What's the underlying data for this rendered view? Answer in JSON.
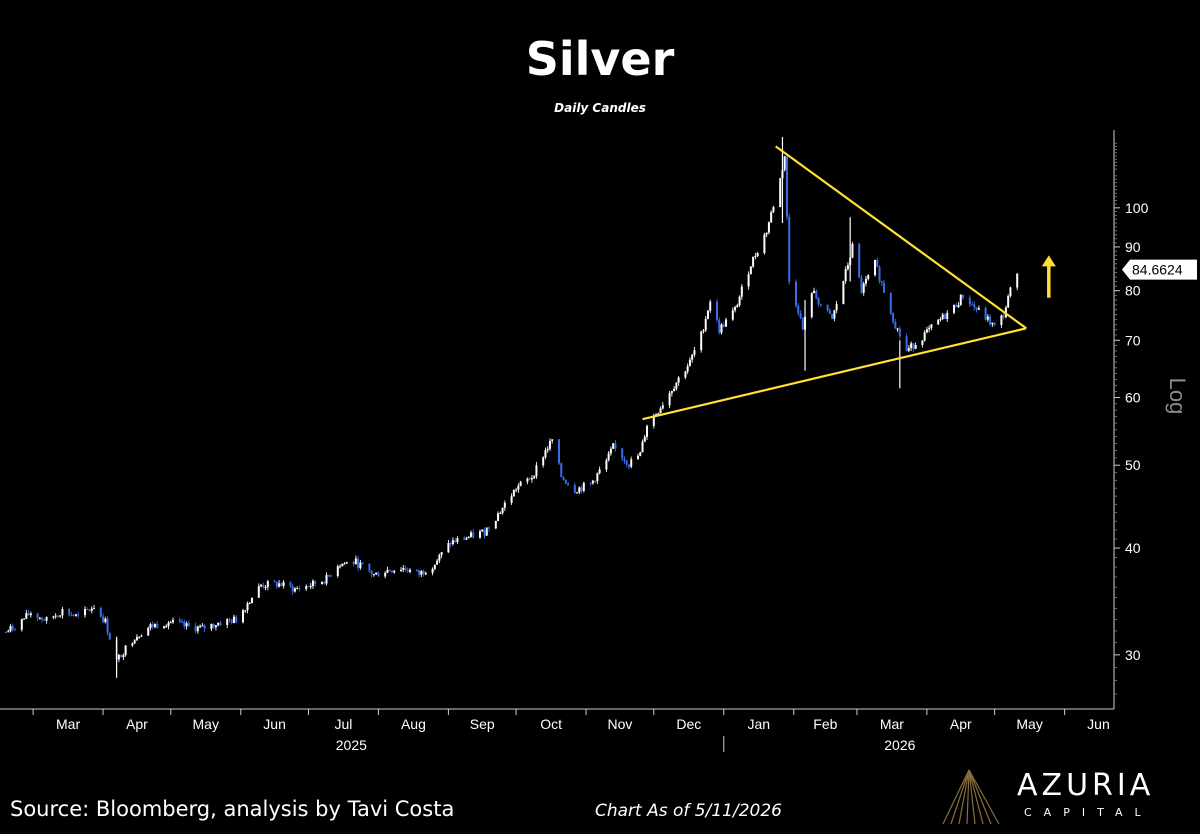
{
  "chart_data": {
    "type": "candlestick",
    "title": "Silver",
    "subtitle": "Daily Candles",
    "scale_label": "Log",
    "last_price_label": "84.6624",
    "y_scale": "log",
    "ylim": [
      26,
      122
    ],
    "y_ticks": [
      30,
      40,
      50,
      60,
      70,
      80,
      90,
      100
    ],
    "x_range": [
      "2025-02-17",
      "2026-06-22"
    ],
    "x_months": [
      "Mar",
      "Apr",
      "May",
      "Jun",
      "Jul",
      "Aug",
      "Sep",
      "Oct",
      "Nov",
      "Dec",
      "Jan",
      "Feb",
      "Mar",
      "Apr",
      "May",
      "Jun"
    ],
    "x_years": [
      "2025",
      "2026"
    ],
    "colors": {
      "up": "#ffffff",
      "down": "#3a6ee8",
      "trendline": "#ffe033",
      "arrow": "#ffe033",
      "axis": "#cccccc"
    },
    "close_path": [
      [
        "2025-02-17",
        31.9
      ],
      [
        "2025-02-21",
        32.4
      ],
      [
        "2025-02-28",
        33.6
      ],
      [
        "2025-03-07",
        32.9
      ],
      [
        "2025-03-14",
        33.8
      ],
      [
        "2025-03-21",
        33.2
      ],
      [
        "2025-03-28",
        34.2
      ],
      [
        "2025-04-02",
        32.8
      ],
      [
        "2025-04-07",
        29.5
      ],
      [
        "2025-04-10",
        30.3
      ],
      [
        "2025-04-15",
        31.5
      ],
      [
        "2025-04-22",
        32.4
      ],
      [
        "2025-04-30",
        32.8
      ],
      [
        "2025-05-07",
        32.4
      ],
      [
        "2025-05-15",
        32.2
      ],
      [
        "2025-05-22",
        32.7
      ],
      [
        "2025-05-30",
        33.0
      ],
      [
        "2025-06-05",
        34.8
      ],
      [
        "2025-06-10",
        36.2
      ],
      [
        "2025-06-18",
        36.3
      ],
      [
        "2025-06-25",
        35.8
      ],
      [
        "2025-07-02",
        36.2
      ],
      [
        "2025-07-09",
        36.8
      ],
      [
        "2025-07-14",
        38.3
      ],
      [
        "2025-07-22",
        38.5
      ],
      [
        "2025-07-30",
        37.2
      ],
      [
        "2025-08-05",
        37.7
      ],
      [
        "2025-08-12",
        37.9
      ],
      [
        "2025-08-19",
        37.3
      ],
      [
        "2025-08-26",
        38.4
      ],
      [
        "2025-09-02",
        40.6
      ],
      [
        "2025-09-10",
        41.2
      ],
      [
        "2025-09-17",
        41.8
      ],
      [
        "2025-09-24",
        44.2
      ],
      [
        "2025-10-01",
        47.0
      ],
      [
        "2025-10-08",
        48.5
      ],
      [
        "2025-10-14",
        52.0
      ],
      [
        "2025-10-17",
        53.5
      ],
      [
        "2025-10-21",
        48.5
      ],
      [
        "2025-10-27",
        46.8
      ],
      [
        "2025-11-03",
        47.5
      ],
      [
        "2025-11-10",
        50.5
      ],
      [
        "2025-11-13",
        52.5
      ],
      [
        "2025-11-20",
        50.2
      ],
      [
        "2025-11-25",
        51.5
      ],
      [
        "2025-11-28",
        55.8
      ],
      [
        "2025-12-03",
        58.0
      ],
      [
        "2025-12-10",
        62.0
      ],
      [
        "2025-12-17",
        66.0
      ],
      [
        "2025-12-22",
        71.0
      ],
      [
        "2025-12-26",
        78.0
      ],
      [
        "2025-12-30",
        72.0
      ],
      [
        "2026-01-06",
        76.0
      ],
      [
        "2026-01-13",
        86.0
      ],
      [
        "2026-01-20",
        94.0
      ],
      [
        "2026-01-26",
        108.0
      ],
      [
        "2026-01-28",
        115.0
      ],
      [
        "2026-01-30",
        82.0
      ],
      [
        "2026-02-03",
        76.0
      ],
      [
        "2026-02-05",
        72.0
      ],
      [
        "2026-02-09",
        80.0
      ],
      [
        "2026-02-13",
        77.0
      ],
      [
        "2026-02-18",
        74.0
      ],
      [
        "2026-02-24",
        84.0
      ],
      [
        "2026-02-27",
        90.0
      ],
      [
        "2026-03-03",
        80.0
      ],
      [
        "2026-03-09",
        86.0
      ],
      [
        "2026-03-13",
        80.0
      ],
      [
        "2026-03-18",
        73.0
      ],
      [
        "2026-03-23",
        68.0
      ],
      [
        "2026-03-27",
        69.5
      ],
      [
        "2026-04-01",
        71.5
      ],
      [
        "2026-04-07",
        74.0
      ],
      [
        "2026-04-13",
        76.5
      ],
      [
        "2026-04-17",
        79.0
      ],
      [
        "2026-04-22",
        76.5
      ],
      [
        "2026-04-28",
        74.0
      ],
      [
        "2026-05-01",
        72.5
      ],
      [
        "2026-05-05",
        75.0
      ],
      [
        "2026-05-08",
        80.0
      ],
      [
        "2026-05-11",
        84.66
      ]
    ],
    "spikes": [
      [
        "2025-04-07",
        28.2,
        31.5
      ],
      [
        "2026-02-06",
        64.5,
        78.0
      ],
      [
        "2026-01-27",
        96.0,
        121.0
      ],
      [
        "2026-03-20",
        61.5,
        70.0
      ],
      [
        "2026-02-26",
        82.0,
        97.5
      ]
    ],
    "trendlines": [
      {
        "from": [
          "2026-01-24",
          118.0
        ],
        "to": [
          "2026-05-15",
          72.3
        ]
      },
      {
        "from": [
          "2025-11-26",
          56.6
        ],
        "to": [
          "2026-05-15",
          72.3
        ]
      }
    ],
    "arrow": {
      "date": "2026-05-25",
      "from_value": 78.5,
      "to_value": 87.5
    }
  },
  "footer": {
    "source": "Source: Bloomberg, analysis by Tavi Costa",
    "as_of": "Chart As of 5/11/2026",
    "logo_name": "AZURIA",
    "logo_sub": "CAPITAL"
  }
}
